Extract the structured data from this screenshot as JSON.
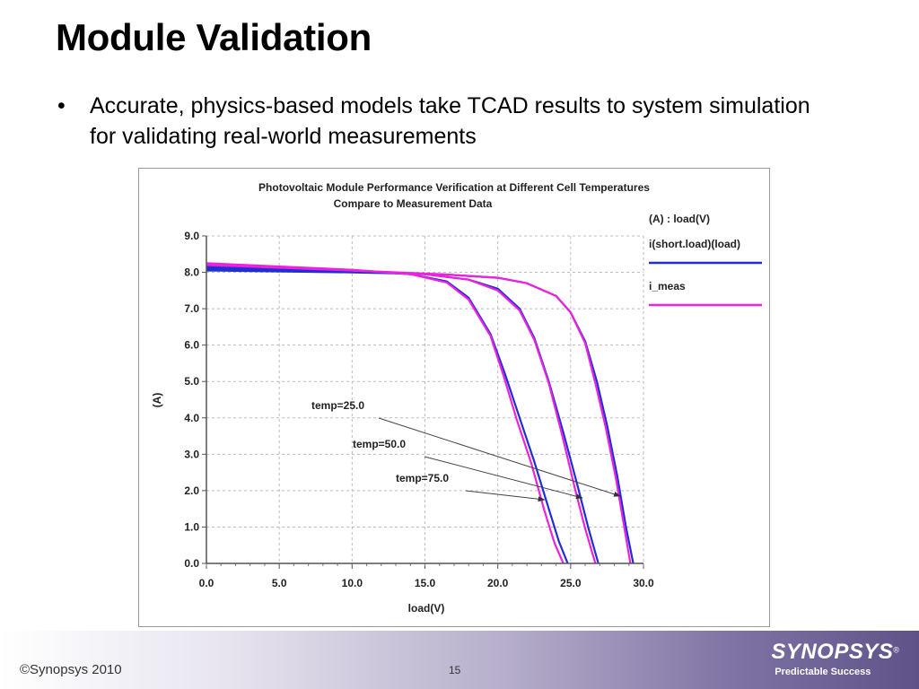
{
  "slide": {
    "title": "Module Validation",
    "bullet_symbol": "•",
    "bullet_text": "Accurate, physics-based models take TCAD results to system simulation for validating real-world measurements"
  },
  "footer": {
    "copyright": "©Synopsys 2010",
    "page_number": "15",
    "logo_text": "SYNOPSYS",
    "logo_mark": "®",
    "tagline": "Predictable Success"
  },
  "colors": {
    "simulated": "#1f2fd6",
    "measured": "#ee22dd",
    "grid": "#bbbbbb"
  },
  "chart_data": {
    "type": "line",
    "title": "Photovoltaic Module Performance Verification at Different Cell Temperatures",
    "subtitle": "Compare to Measurement Data",
    "xlabel": "load(V)",
    "ylabel": "(A)",
    "xlim": [
      0,
      30
    ],
    "ylim": [
      0,
      9
    ],
    "xticks": [
      "0.0",
      "5.0",
      "10.0",
      "15.0",
      "20.0",
      "25.0",
      "30.0"
    ],
    "yticks": [
      "0.0",
      "1.0",
      "2.0",
      "3.0",
      "4.0",
      "5.0",
      "6.0",
      "7.0",
      "8.0",
      "9.0"
    ],
    "grid": true,
    "legend_heading": "(A) : load(V)",
    "legend": [
      {
        "label": "i(short.load)(load)",
        "color_key": "simulated"
      },
      {
        "label": "i_meas",
        "color_key": "measured"
      }
    ],
    "series": [
      {
        "name": "i(short.load)(load)",
        "group": "temp=25.0",
        "x": [
          0,
          10,
          16,
          20,
          22,
          24,
          25,
          26,
          26.8,
          27.5,
          28.2,
          28.8,
          29.3
        ],
        "y": [
          8.05,
          8.0,
          7.95,
          7.85,
          7.7,
          7.35,
          6.9,
          6.1,
          5.0,
          3.8,
          2.4,
          1.0,
          0
        ]
      },
      {
        "name": "i(short.load)(load)",
        "group": "temp=50.0",
        "x": [
          0,
          10,
          15,
          18,
          20,
          21.5,
          22.5,
          23.5,
          24.5,
          25.5,
          26.2,
          26.9
        ],
        "y": [
          8.1,
          8.02,
          7.95,
          7.8,
          7.55,
          7.0,
          6.2,
          5.0,
          3.6,
          2.1,
          1.0,
          0
        ]
      },
      {
        "name": "i(short.load)(load)",
        "group": "temp=75.0",
        "x": [
          0,
          10,
          14,
          16.5,
          18,
          19.5,
          20.5,
          21.5,
          22.5,
          23.5,
          24.2,
          24.8
        ],
        "y": [
          8.15,
          8.05,
          7.95,
          7.75,
          7.3,
          6.3,
          5.2,
          4.0,
          2.8,
          1.5,
          0.6,
          0
        ]
      },
      {
        "name": "i_meas",
        "group": "temp=25.0",
        "x": [
          0,
          10,
          16,
          20,
          22,
          24,
          25,
          26,
          26.7,
          27.4,
          28.1,
          28.7,
          29.1
        ],
        "y": [
          8.2,
          8.05,
          7.95,
          7.85,
          7.7,
          7.35,
          6.9,
          6.05,
          4.95,
          3.75,
          2.35,
          0.95,
          0
        ]
      },
      {
        "name": "i_meas",
        "group": "temp=50.0",
        "x": [
          0,
          10,
          15,
          18,
          20,
          21.5,
          22.5,
          23.5,
          24.4,
          25.3,
          26.0,
          26.7
        ],
        "y": [
          8.22,
          8.05,
          7.95,
          7.8,
          7.5,
          6.95,
          6.15,
          4.95,
          3.55,
          2.05,
          0.95,
          0
        ]
      },
      {
        "name": "i_meas",
        "group": "temp=75.0",
        "x": [
          0,
          10,
          14,
          16.5,
          18,
          19.5,
          20.4,
          21.3,
          22.3,
          23.2,
          23.9,
          24.5
        ],
        "y": [
          8.25,
          8.07,
          7.95,
          7.72,
          7.25,
          6.25,
          5.15,
          3.95,
          2.75,
          1.45,
          0.55,
          0
        ]
      }
    ],
    "annotations": [
      {
        "text": "temp=25.0",
        "points_to": [
          28.4,
          1.85
        ]
      },
      {
        "text": "temp=50.0",
        "points_to": [
          25.8,
          1.8
        ]
      },
      {
        "text": "temp=75.0",
        "points_to": [
          23.2,
          1.75
        ]
      }
    ]
  }
}
